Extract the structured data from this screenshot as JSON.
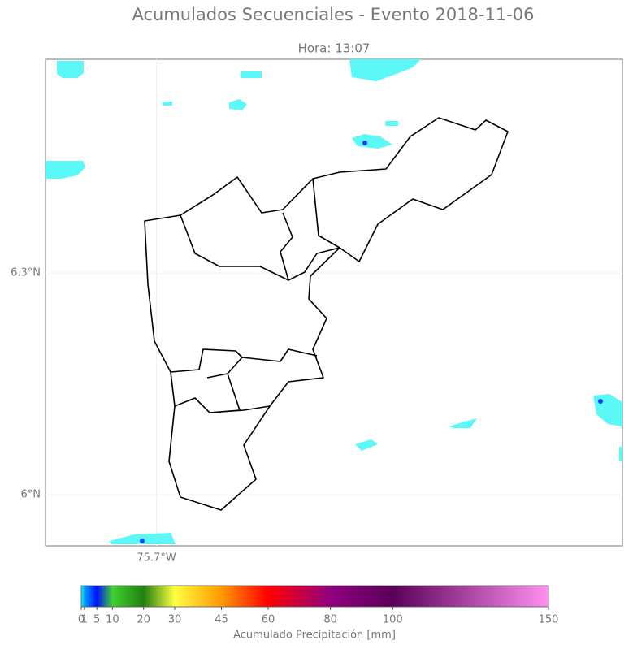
{
  "chart_data": {
    "type": "map",
    "title": "Acumulados Secuenciales - Evento 2018-11-06",
    "subtitle": "Hora: 13:07",
    "xlim": [
      -75.85,
      -75.07
    ],
    "ylim": [
      5.931,
      6.589
    ],
    "xticks": [
      {
        "value": -75.7,
        "label": "75.7°W"
      }
    ],
    "yticks": [
      {
        "value": 6.0,
        "label": "6°N"
      },
      {
        "value": 6.3,
        "label": "6.3°N"
      }
    ],
    "grid": true,
    "colorbar": {
      "label": "Acumulado Precipitación [mm]",
      "lim": [
        0,
        150
      ],
      "ticks": [
        0,
        1,
        5,
        10,
        20,
        30,
        45,
        60,
        80,
        100,
        150
      ],
      "tick_colors": [
        "#00ffff",
        "#00a0ff",
        "#0010ff",
        "#40d030",
        "#208010",
        "#ffff40",
        "#ff9a00",
        "#ff0000",
        "#900080",
        "#5a0058",
        "#ff90f0"
      ]
    }
  }
}
